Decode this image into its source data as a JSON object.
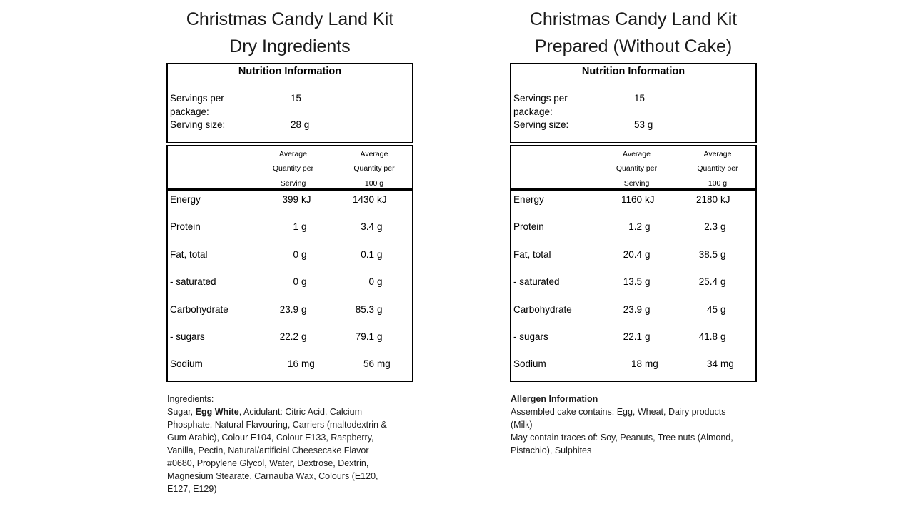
{
  "columns": [
    {
      "id": "dry-ingredients",
      "title_lines": [
        "Christmas Candy Land Kit",
        "Dry Ingredients"
      ],
      "nutrition": {
        "header": "Nutrition Information",
        "serving_info": [
          {
            "label": "Servings per package:",
            "value": "15"
          },
          {
            "label": "Serving size:",
            "value": "28 g"
          }
        ],
        "column_headers": [
          [
            "Average",
            "Quantity per",
            "Serving"
          ],
          [
            "Average",
            "Quantity per",
            "100 g"
          ]
        ],
        "rows": [
          {
            "name": "Energy",
            "per_serving": {
              "num": "399",
              "unit": "kJ"
            },
            "per_100g": {
              "num": "1430",
              "unit": "kJ"
            }
          },
          {
            "name": "Protein",
            "per_serving": {
              "num": "1",
              "unit": "g"
            },
            "per_100g": {
              "num": "3.4",
              "unit": "g"
            }
          },
          {
            "name": "Fat, total",
            "per_serving": {
              "num": "0",
              "unit": "g"
            },
            "per_100g": {
              "num": "0.1",
              "unit": "g"
            }
          },
          {
            "name": "- saturated",
            "per_serving": {
              "num": "0",
              "unit": "g"
            },
            "per_100g": {
              "num": "0",
              "unit": "g"
            }
          },
          {
            "name": "Carbohydrate",
            "per_serving": {
              "num": "23.9",
              "unit": "g"
            },
            "per_100g": {
              "num": "85.3",
              "unit": "g"
            }
          },
          {
            "name": "- sugars",
            "per_serving": {
              "num": "22.2",
              "unit": "g"
            },
            "per_100g": {
              "num": "79.1",
              "unit": "g"
            }
          },
          {
            "name": "Sodium",
            "per_serving": {
              "num": "16",
              "unit": "mg"
            },
            "per_100g": {
              "num": "56",
              "unit": "mg"
            }
          }
        ]
      },
      "footer": {
        "heading": "Ingredients:",
        "lines": [
          [
            {
              "text": "Sugar, ",
              "bold": false
            },
            {
              "text": "Egg White",
              "bold": true
            },
            {
              "text": ", Acidulant: Citric Acid, Calcium Phosphate, Natural Flavouring, Carriers (maltodextrin & Gum Arabic), Colour E104, Colour E133, Raspberry, Vanilla, Pectin, Natural/artificial Cheesecake Flavor #0680, Propylene Glycol, Water, Dextrose, Dextrin, Magnesium Stearate, Carnauba Wax, Colours (E120, E127, E129)",
              "bold": false
            }
          ]
        ]
      }
    },
    {
      "id": "prepared-without-cake",
      "title_lines": [
        "Christmas Candy Land Kit",
        "Prepared (Without Cake)"
      ],
      "nutrition": {
        "header": "Nutrition Information",
        "serving_info": [
          {
            "label": "Servings per package:",
            "value": "15"
          },
          {
            "label": "Serving size:",
            "value": "53 g"
          }
        ],
        "column_headers": [
          [
            "Average",
            "Quantity per",
            "Serving"
          ],
          [
            "Average",
            "Quantity per",
            "100 g"
          ]
        ],
        "rows": [
          {
            "name": "Energy",
            "per_serving": {
              "num": "1160",
              "unit": "kJ"
            },
            "per_100g": {
              "num": "2180",
              "unit": "kJ"
            }
          },
          {
            "name": "Protein",
            "per_serving": {
              "num": "1.2",
              "unit": "g"
            },
            "per_100g": {
              "num": "2.3",
              "unit": "g"
            }
          },
          {
            "name": "Fat, total",
            "per_serving": {
              "num": "20.4",
              "unit": "g"
            },
            "per_100g": {
              "num": "38.5",
              "unit": "g"
            }
          },
          {
            "name": "- saturated",
            "per_serving": {
              "num": "13.5",
              "unit": "g"
            },
            "per_100g": {
              "num": "25.4",
              "unit": "g"
            }
          },
          {
            "name": "Carbohydrate",
            "per_serving": {
              "num": "23.9",
              "unit": "g"
            },
            "per_100g": {
              "num": "45",
              "unit": "g"
            }
          },
          {
            "name": "- sugars",
            "per_serving": {
              "num": "22.1",
              "unit": "g"
            },
            "per_100g": {
              "num": "41.8",
              "unit": "g"
            }
          },
          {
            "name": "Sodium",
            "per_serving": {
              "num": "18",
              "unit": "mg"
            },
            "per_100g": {
              "num": "34",
              "unit": "mg"
            }
          }
        ]
      },
      "footer": {
        "heading": "Allergen Information",
        "lines": [
          [
            {
              "text": "Assembled cake contains: Egg, Wheat, Dairy products (Milk)",
              "bold": false
            }
          ],
          [
            {
              "text": "May contain traces of: Soy, Peanuts, Tree nuts (Almond, Pistachio), Sulphites",
              "bold": false
            }
          ]
        ]
      }
    }
  ]
}
